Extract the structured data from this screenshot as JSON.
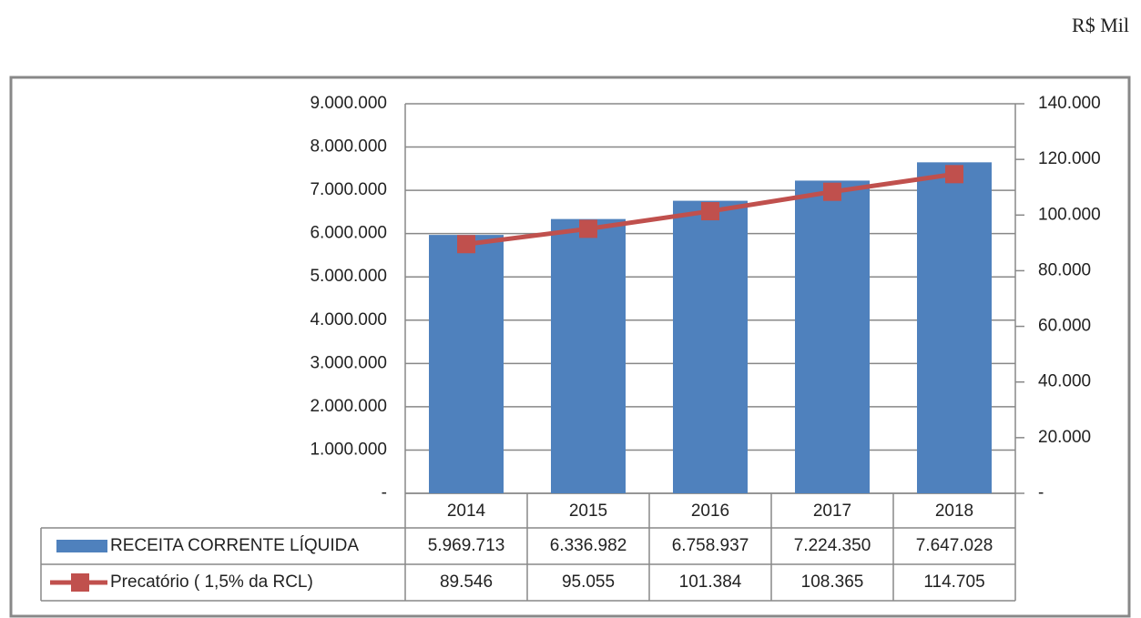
{
  "chart_data": {
    "type": "bar-line",
    "annotation": "R$ Mil",
    "categories": [
      "2014",
      "2015",
      "2016",
      "2017",
      "2018"
    ],
    "series": [
      {
        "name": "RECEITA CORRENTE LÍQUIDA",
        "type": "bar",
        "color": "#4f81bd",
        "axis": "y",
        "values": [
          5969713,
          6336982,
          6758937,
          7224350,
          7647028
        ],
        "value_labels": [
          "5.969.713",
          "6.336.982",
          "6.758.937",
          "7.224.350",
          "7.647.028"
        ]
      },
      {
        "name": "Precatório ( 1,5% da RCL)",
        "type": "line",
        "color": "#c0504d",
        "axis": "y2",
        "values": [
          89546,
          95055,
          101384,
          108365,
          114705
        ],
        "value_labels": [
          "89.546",
          "95.055",
          "101.384",
          "108.365",
          "114.705"
        ]
      }
    ],
    "ylim": [
      0,
      9000000
    ],
    "yticks": [
      {
        "value": 0,
        "label": "-"
      },
      {
        "value": 1000000,
        "label": "1.000.000"
      },
      {
        "value": 2000000,
        "label": "2.000.000"
      },
      {
        "value": 3000000,
        "label": "3.000.000"
      },
      {
        "value": 4000000,
        "label": "4.000.000"
      },
      {
        "value": 5000000,
        "label": "5.000.000"
      },
      {
        "value": 6000000,
        "label": "6.000.000"
      },
      {
        "value": 7000000,
        "label": "7.000.000"
      },
      {
        "value": 8000000,
        "label": "8.000.000"
      },
      {
        "value": 9000000,
        "label": "9.000.000"
      }
    ],
    "y2lim": [
      0,
      140000
    ],
    "y2ticks": [
      {
        "value": 0,
        "label": "-"
      },
      {
        "value": 20000,
        "label": "20.000"
      },
      {
        "value": 40000,
        "label": "40.000"
      },
      {
        "value": 60000,
        "label": "60.000"
      },
      {
        "value": 80000,
        "label": "80.000"
      },
      {
        "value": 100000,
        "label": "100.000"
      },
      {
        "value": 120000,
        "label": "120.000"
      },
      {
        "value": 140000,
        "label": "140.000"
      }
    ],
    "grid": true
  }
}
